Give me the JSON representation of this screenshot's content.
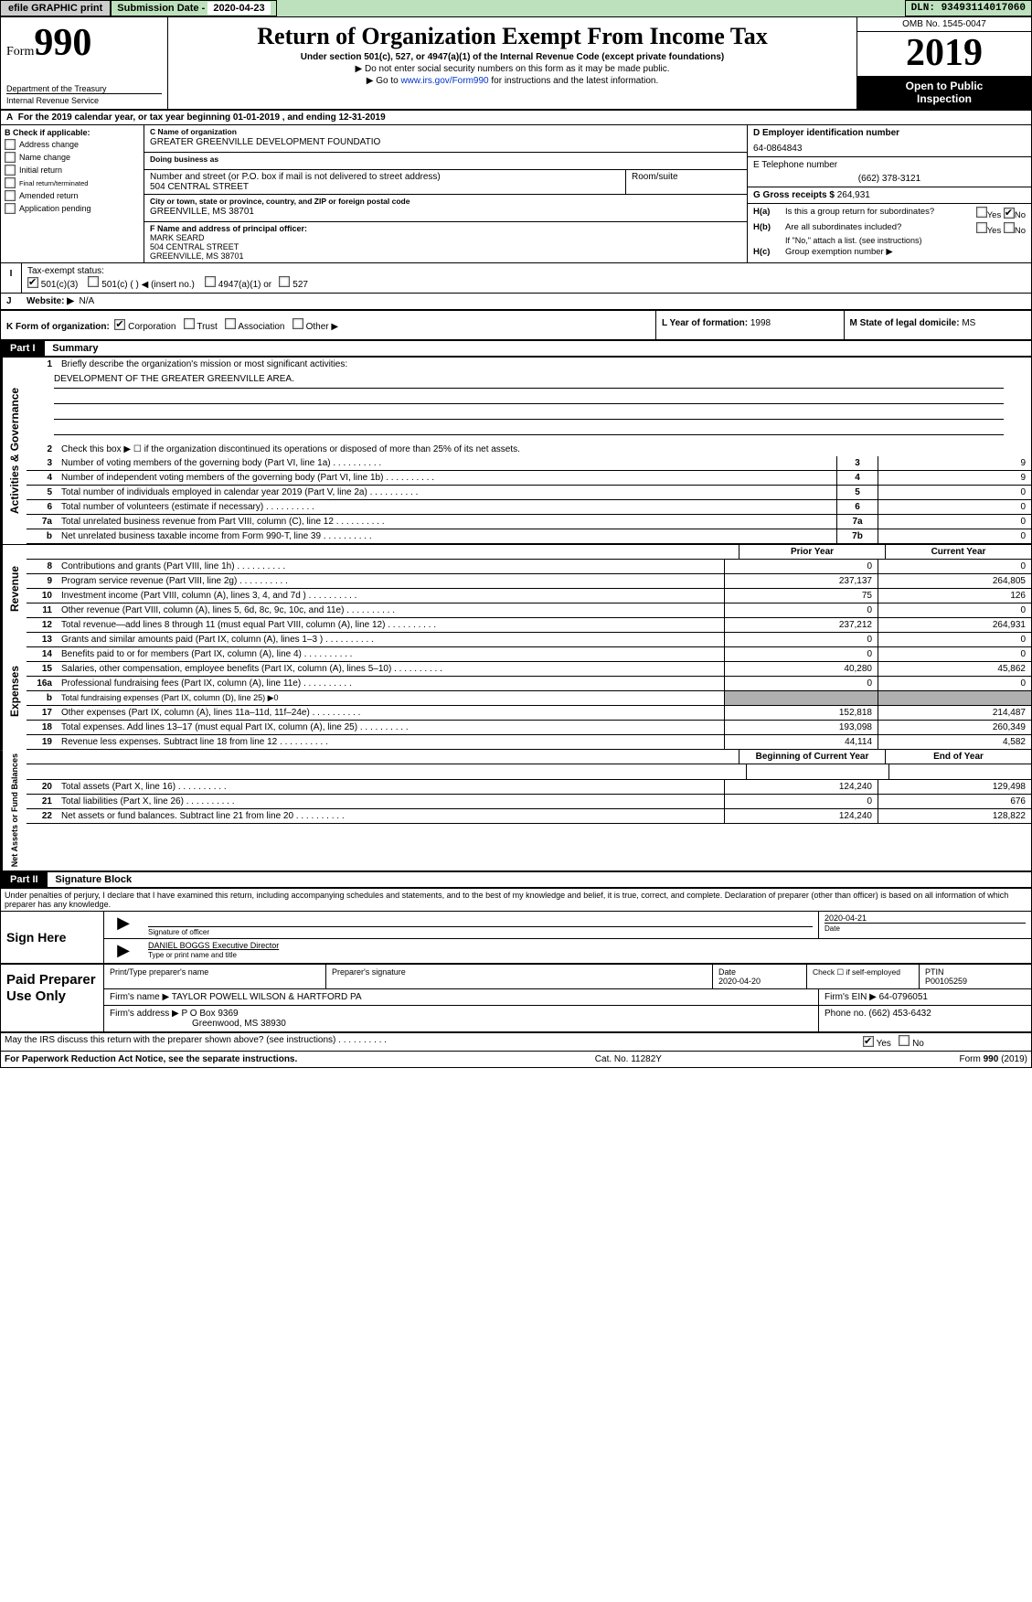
{
  "topbar": {
    "efile_btn": "efile GRAPHIC print",
    "submission_label": "Submission Date - ",
    "submission_date": "2020-04-23",
    "dln_label": "DLN: ",
    "dln": "93493114017060"
  },
  "header": {
    "form_word": "Form",
    "form_number": "990",
    "dept1": "Department of the Treasury",
    "dept2": "Internal Revenue Service",
    "title": "Return of Organization Exempt From Income Tax",
    "subtitle": "Under section 501(c), 527, or 4947(a)(1) of the Internal Revenue Code (except private foundations)",
    "note1": "▶ Do not enter social security numbers on this form as it may be made public.",
    "note2_pre": "▶ Go to ",
    "note2_link": "www.irs.gov/Form990",
    "note2_post": " for instructions and the latest information.",
    "omb": "OMB No. 1545-0047",
    "year": "2019",
    "inspect1": "Open to Public",
    "inspect2": "Inspection"
  },
  "rowA": {
    "text_pre": "For the 2019 calendar year, or tax year beginning ",
    "begin": "01-01-2019",
    "mid": " , and ending ",
    "end": "12-31-2019"
  },
  "colB": {
    "header": "Check if applicable:",
    "items": [
      "Address change",
      "Name change",
      "Initial return",
      "Final return/terminated",
      "Amended return",
      "Application pending"
    ]
  },
  "boxC": {
    "label_name": "C Name of organization",
    "org_name": "GREATER GREENVILLE DEVELOPMENT FOUNDATIO",
    "dba_label": "Doing business as",
    "dba": "",
    "addr_label": "Number and street (or P.O. box if mail is not delivered to street address)",
    "room_label": "Room/suite",
    "addr": "504 CENTRAL STREET",
    "city_label": "City or town, state or province, country, and ZIP or foreign postal code",
    "city": "GREENVILLE, MS  38701",
    "f_label": "F Name and address of principal officer:",
    "f_name": "MARK SEARD",
    "f_addr1": "504 CENTRAL STREET",
    "f_addr2": "GREENVILLE, MS  38701"
  },
  "boxD": {
    "label": "D Employer identification number",
    "ein": "64-0864843",
    "e_label": "E Telephone number",
    "phone": "(662) 378-3121",
    "g_label": "G Gross receipts $ ",
    "g_val": "264,931",
    "ha_label": "Is this a group return for subordinates?",
    "ha_yes": "Yes",
    "ha_no": "No",
    "hb_label": "Are all subordinates included?",
    "hb_hint": "If \"No,\" attach a list. (see instructions)",
    "hc_label": "Group exemption number ▶"
  },
  "rowI": {
    "label": "Tax-exempt status:",
    "opts": [
      "501(c)(3)",
      "501(c) (  ) ◀ (insert no.)",
      "4947(a)(1) or",
      "527"
    ]
  },
  "rowJ": {
    "label": "Website: ▶",
    "val": "N/A"
  },
  "rowK": {
    "label": "K Form of organization:",
    "opts": [
      "Corporation",
      "Trust",
      "Association",
      "Other ▶"
    ],
    "L": "L Year of formation: ",
    "L_val": "1998",
    "M": "M State of legal domicile: ",
    "M_val": "MS"
  },
  "partI": {
    "header": "Part I",
    "title": "Summary"
  },
  "governance": {
    "side": "Activities & Governance",
    "l1_label": "Briefly describe the organization's mission or most significant activities:",
    "l1_text": "DEVELOPMENT OF THE GREATER GREENVILLE AREA.",
    "l2": "Check this box ▶ ☐  if the organization discontinued its operations or disposed of more than 25% of its net assets.",
    "lines": [
      {
        "n": "3",
        "t": "Number of voting members of the governing body (Part VI, line 1a)",
        "box": "3",
        "v": "9"
      },
      {
        "n": "4",
        "t": "Number of independent voting members of the governing body (Part VI, line 1b)",
        "box": "4",
        "v": "9"
      },
      {
        "n": "5",
        "t": "Total number of individuals employed in calendar year 2019 (Part V, line 2a)",
        "box": "5",
        "v": "0"
      },
      {
        "n": "6",
        "t": "Total number of volunteers (estimate if necessary)",
        "box": "6",
        "v": "0"
      },
      {
        "n": "7a",
        "t": "Total unrelated business revenue from Part VIII, column (C), line 12",
        "box": "7a",
        "v": "0"
      },
      {
        "n": "b",
        "t": "Net unrelated business taxable income from Form 990-T, line 39",
        "box": "7b",
        "v": "0"
      }
    ]
  },
  "twocol_headers": {
    "prior": "Prior Year",
    "current": "Current Year"
  },
  "revenue": {
    "side": "Revenue",
    "lines": [
      {
        "n": "8",
        "t": "Contributions and grants (Part VIII, line 1h)",
        "c1": "0",
        "c2": "0"
      },
      {
        "n": "9",
        "t": "Program service revenue (Part VIII, line 2g)",
        "c1": "237,137",
        "c2": "264,805"
      },
      {
        "n": "10",
        "t": "Investment income (Part VIII, column (A), lines 3, 4, and 7d )",
        "c1": "75",
        "c2": "126"
      },
      {
        "n": "11",
        "t": "Other revenue (Part VIII, column (A), lines 5, 6d, 8c, 9c, 10c, and 11e)",
        "c1": "0",
        "c2": "0"
      },
      {
        "n": "12",
        "t": "Total revenue—add lines 8 through 11 (must equal Part VIII, column (A), line 12)",
        "c1": "237,212",
        "c2": "264,931"
      }
    ]
  },
  "expenses": {
    "side": "Expenses",
    "lines": [
      {
        "n": "13",
        "t": "Grants and similar amounts paid (Part IX, column (A), lines 1–3 )",
        "c1": "0",
        "c2": "0"
      },
      {
        "n": "14",
        "t": "Benefits paid to or for members (Part IX, column (A), line 4)",
        "c1": "0",
        "c2": "0"
      },
      {
        "n": "15",
        "t": "Salaries, other compensation, employee benefits (Part IX, column (A), lines 5–10)",
        "c1": "40,280",
        "c2": "45,862"
      },
      {
        "n": "16a",
        "t": "Professional fundraising fees (Part IX, column (A), line 11e)",
        "c1": "0",
        "c2": "0"
      },
      {
        "n": "b",
        "t": "Total fundraising expenses (Part IX, column (D), line 25) ▶0",
        "gray": true
      },
      {
        "n": "17",
        "t": "Other expenses (Part IX, column (A), lines 11a–11d, 11f–24e)",
        "c1": "152,818",
        "c2": "214,487"
      },
      {
        "n": "18",
        "t": "Total expenses. Add lines 13–17 (must equal Part IX, column (A), line 25)",
        "c1": "193,098",
        "c2": "260,349"
      },
      {
        "n": "19",
        "t": "Revenue less expenses. Subtract line 18 from line 12",
        "c1": "44,114",
        "c2": "4,582"
      }
    ]
  },
  "net_headers": {
    "begin": "Beginning of Current Year",
    "end": "End of Year"
  },
  "netassets": {
    "side": "Net Assets or Fund Balances",
    "lines": [
      {
        "n": "20",
        "t": "Total assets (Part X, line 16)",
        "c1": "124,240",
        "c2": "129,498"
      },
      {
        "n": "21",
        "t": "Total liabilities (Part X, line 26)",
        "c1": "0",
        "c2": "676"
      },
      {
        "n": "22",
        "t": "Net assets or fund balances. Subtract line 21 from line 20",
        "c1": "124,240",
        "c2": "128,822"
      }
    ]
  },
  "partII": {
    "header": "Part II",
    "title": "Signature Block"
  },
  "perjury": "Under penalties of perjury, I declare that I have examined this return, including accompanying schedules and statements, and to the best of my knowledge and belief, it is true, correct, and complete. Declaration of preparer (other than officer) is based on all information of which preparer has any knowledge.",
  "sign": {
    "label": "Sign Here",
    "date": "2020-04-21",
    "sig_lbl": "Signature of officer",
    "date_lbl": "Date",
    "name": "DANIEL BOGGS  Executive Director",
    "name_lbl": "Type or print name and title"
  },
  "prep": {
    "label": "Paid Preparer Use Only",
    "h1": "Print/Type preparer's name",
    "h2": "Preparer's signature",
    "h3": "Date",
    "h4_pre": "Check ☐ if self-employed",
    "h5": "PTIN",
    "date": "2020-04-20",
    "ptin": "P00105259",
    "firm_lbl": "Firm's name   ▶ ",
    "firm": "TAYLOR POWELL WILSON & HARTFORD PA",
    "ein_lbl": "Firm's EIN ▶ ",
    "ein": "64-0796051",
    "addr_lbl": "Firm's address ▶ ",
    "addr1": "P O Box 9369",
    "addr2": "Greenwood, MS  38930",
    "phone_lbl": "Phone no. ",
    "phone": "(662) 453-6432"
  },
  "footer": {
    "discuss": "May the IRS discuss this return with the preparer shown above? (see instructions)",
    "yes": "Yes",
    "no": "No",
    "pra": "For Paperwork Reduction Act Notice, see the separate instructions.",
    "cat": "Cat. No. 11282Y",
    "form": "Form 990 (2019)"
  }
}
